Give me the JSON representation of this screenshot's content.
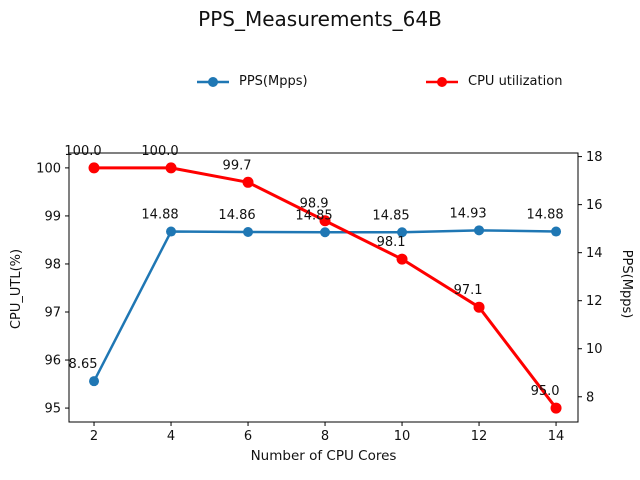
{
  "chart_data": {
    "type": "line",
    "title": "PPS_Measurements_64B",
    "xlabel": "Number of CPU Cores",
    "ylabel_left": "CPU_UTL(%)",
    "ylabel_right": "PPS(Mpps)",
    "x": [
      2,
      4,
      6,
      8,
      10,
      12,
      14
    ],
    "series": [
      {
        "name": "PPS(Mpps)",
        "axis": "right",
        "color": "#1f77b4",
        "values": [
          8.65,
          14.88,
          14.86,
          14.85,
          14.85,
          14.93,
          14.88
        ],
        "point_labels": [
          "8.65",
          "14.88",
          "14.86",
          "14.85",
          "14.85",
          "14.93",
          "14.88"
        ]
      },
      {
        "name": "CPU utilization",
        "axis": "left",
        "color": "#ff0000",
        "values": [
          100.0,
          100.0,
          99.7,
          98.9,
          98.1,
          97.1,
          95.0
        ],
        "point_labels": [
          "100.0",
          "100.0",
          "99.7",
          "98.9",
          "98.1",
          "97.1",
          "95.0"
        ]
      }
    ],
    "xticks": [
      2,
      4,
      6,
      8,
      10,
      12,
      14
    ],
    "yticks_left": [
      95,
      96,
      97,
      98,
      99,
      100
    ],
    "yticks_right": [
      8,
      10,
      12,
      14,
      16,
      18
    ],
    "xlim": [
      1.35,
      14.57
    ],
    "ylim_left": [
      94.71,
      100.31
    ],
    "ylim_right": [
      6.95,
      18.15
    ],
    "grid": false,
    "legend_position": "top-center",
    "legend_frame": false,
    "background": "#ffffff"
  }
}
